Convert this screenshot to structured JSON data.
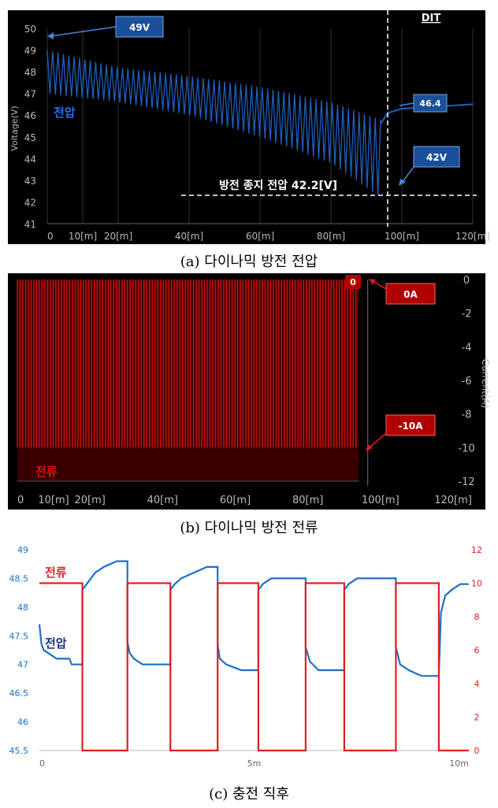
{
  "captions": {
    "a": "(a) 다이나믹 방전 전압",
    "b": "(b) 다이나믹 방전 전류",
    "c": "(c) 충전 직후"
  },
  "colors": {
    "dark_bg": "#000000",
    "voltage_blue": "#1f5fbf",
    "current_red": "#d01010",
    "callout_blue": "#1a4f9a",
    "callout_red": "#b00000",
    "light_voltage_blue": "#1b6fc8",
    "light_current_red": "#e02020"
  },
  "chart_data": [
    {
      "id": "a",
      "type": "line",
      "xlabel": "",
      "ylabel": "Voltage(V)",
      "xlim": [
        0,
        120
      ],
      "ylim": [
        41,
        50
      ],
      "x_ticks": [
        "0",
        "10[m]",
        "20[m]",
        "40[m]",
        "60[m]",
        "80[m]",
        "100[m]",
        "120[m]"
      ],
      "y_ticks": [
        "41",
        "42",
        "43",
        "44",
        "45",
        "46",
        "47",
        "48",
        "49",
        "50"
      ],
      "series": [
        {
          "name": "전압",
          "description_points": {
            "upper_envelope": [
              [
                0,
                49.0
              ],
              [
                20,
                48.2
              ],
              [
                40,
                47.8
              ],
              [
                60,
                47.3
              ],
              [
                80,
                46.6
              ],
              [
                94,
                45.8
              ]
            ],
            "lower_envelope": [
              [
                0,
                47.0
              ],
              [
                20,
                46.6
              ],
              [
                40,
                46.0
              ],
              [
                60,
                45.0
              ],
              [
                80,
                43.8
              ],
              [
                94,
                42.2
              ]
            ],
            "recovery": [
              [
                94,
                45.6
              ],
              [
                96,
                46.1
              ],
              [
                100,
                46.3
              ],
              [
                110,
                46.4
              ],
              [
                120,
                46.5
              ]
            ]
          },
          "pulses": 62
        }
      ],
      "annotations": {
        "v49": "49V",
        "v42": "42V",
        "v464": "46.4",
        "dit": "DIT",
        "cutoff": "방전 종지 전압 42.2[V]",
        "series_label": "전압"
      }
    },
    {
      "id": "b",
      "type": "line",
      "xlabel": "",
      "ylabel": "Current(A)",
      "xlim": [
        0,
        120
      ],
      "ylim": [
        -12,
        0
      ],
      "x_ticks": [
        "0",
        "10[m]",
        "20[m]",
        "40[m]",
        "60[m]",
        "80[m]",
        "100[m]",
        "120[m]"
      ],
      "y_ticks": [
        "0",
        "-2",
        "-4",
        "-6",
        "-8",
        "-10",
        "-12"
      ],
      "series": [
        {
          "name": "전류",
          "high": 0,
          "low": -10,
          "pulses": 62,
          "end_x": 94
        }
      ],
      "annotations": {
        "zero_marker": "0",
        "a0": "0A",
        "a10": "-10A",
        "series_label": "전류"
      }
    },
    {
      "id": "c",
      "type": "line",
      "xlabel": "",
      "x_ticks": [
        "0",
        "5m",
        "10m"
      ],
      "xlim": [
        0,
        10
      ],
      "left_axis": {
        "ticks": [
          "45.5",
          "46",
          "46.5",
          "47",
          "47.5",
          "48",
          "48.5",
          "49"
        ],
        "ylim": [
          45.5,
          49
        ]
      },
      "right_axis": {
        "ticks": [
          "0",
          "2",
          "4",
          "6",
          "8",
          "10",
          "12"
        ],
        "ylim": [
          0,
          12
        ]
      },
      "series": [
        {
          "name": "전압",
          "axis": "left",
          "points": [
            [
              0,
              47.7
            ],
            [
              0.05,
              47.35
            ],
            [
              0.1,
              47.25
            ],
            [
              0.2,
              47.2
            ],
            [
              0.4,
              47.1
            ],
            [
              0.7,
              47.1
            ],
            [
              0.75,
              47.0
            ],
            [
              1.0,
              47.0
            ],
            [
              1.0,
              48.3
            ],
            [
              1.1,
              48.4
            ],
            [
              1.2,
              48.5
            ],
            [
              1.3,
              48.6
            ],
            [
              1.5,
              48.7
            ],
            [
              1.8,
              48.8
            ],
            [
              2.05,
              48.8
            ],
            [
              2.05,
              47.4
            ],
            [
              2.1,
              47.2
            ],
            [
              2.2,
              47.1
            ],
            [
              2.4,
              47.0
            ],
            [
              3.05,
              47.0
            ],
            [
              3.05,
              48.3
            ],
            [
              3.15,
              48.4
            ],
            [
              3.3,
              48.5
            ],
            [
              3.6,
              48.6
            ],
            [
              3.9,
              48.7
            ],
            [
              4.15,
              48.7
            ],
            [
              4.15,
              47.35
            ],
            [
              4.2,
              47.1
            ],
            [
              4.35,
              47.0
            ],
            [
              4.7,
              46.9
            ],
            [
              5.1,
              46.9
            ],
            [
              5.1,
              48.3
            ],
            [
              5.2,
              48.4
            ],
            [
              5.4,
              48.5
            ],
            [
              5.7,
              48.5
            ],
            [
              6.1,
              48.5
            ],
            [
              6.2,
              48.5
            ],
            [
              6.2,
              47.3
            ],
            [
              6.3,
              47.05
            ],
            [
              6.5,
              46.9
            ],
            [
              7.1,
              46.9
            ],
            [
              7.1,
              48.3
            ],
            [
              7.2,
              48.4
            ],
            [
              7.4,
              48.5
            ],
            [
              7.8,
              48.5
            ],
            [
              8.2,
              48.5
            ],
            [
              8.3,
              48.5
            ],
            [
              8.3,
              47.3
            ],
            [
              8.4,
              47.0
            ],
            [
              8.6,
              46.9
            ],
            [
              8.9,
              46.8
            ],
            [
              9.3,
              46.8
            ],
            [
              9.35,
              47.9
            ],
            [
              9.45,
              48.2
            ],
            [
              9.6,
              48.3
            ],
            [
              9.8,
              48.4
            ],
            [
              10,
              48.4
            ]
          ]
        },
        {
          "name": "전류",
          "axis": "right",
          "points": [
            [
              0,
              10
            ],
            [
              1.0,
              10
            ],
            [
              1.0,
              0
            ],
            [
              2.05,
              0
            ],
            [
              2.05,
              10
            ],
            [
              3.05,
              10
            ],
            [
              3.05,
              0
            ],
            [
              4.15,
              0
            ],
            [
              4.15,
              10
            ],
            [
              5.1,
              10
            ],
            [
              5.1,
              0
            ],
            [
              6.2,
              0
            ],
            [
              6.2,
              10
            ],
            [
              7.1,
              10
            ],
            [
              7.1,
              0
            ],
            [
              8.3,
              0
            ],
            [
              8.3,
              10
            ],
            [
              9.3,
              10
            ],
            [
              9.3,
              0
            ],
            [
              10,
              0
            ]
          ]
        }
      ],
      "annotations": {
        "current_label": "전류",
        "voltage_label": "전압"
      }
    }
  ]
}
